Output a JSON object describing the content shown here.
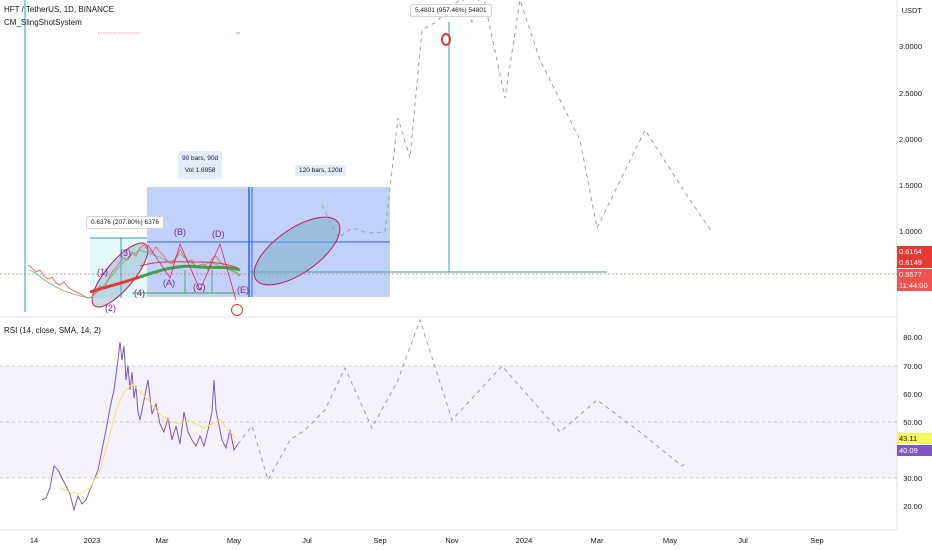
{
  "header": {
    "symbol_line": "HFT / TetherUS, 1D, BINANCE",
    "indicator_line": "CM_SlingShotSystem"
  },
  "price_axis": {
    "currency": "USDT",
    "labels": [
      "3.0000",
      "2.5000",
      "2.0000",
      "1.5000",
      "1.0000"
    ]
  },
  "price_tags": {
    "tag1": "0.6164",
    "tag2": "0.6149",
    "tag3": "0.5577",
    "countdown": "11:44:00",
    "colors": {
      "red": "#e53935",
      "dark_red": "#b71c1c"
    }
  },
  "annotations": {
    "top_measure": "5.4801 (957.46%) 54801",
    "left_measure": "0.6376 (207.80%) 6376",
    "range1_bars": "90 bars, 90d",
    "range1_vol": "Vol 1.6958",
    "range2_bars": "120 bars, 120d",
    "waves": [
      "(1)",
      "(2)",
      "(3)",
      "(4)",
      "(A)",
      "(B)",
      "(C)",
      "(D)",
      "(E)"
    ]
  },
  "rsi": {
    "title": "RSI (14, close, SMA, 14, 2)",
    "axis_labels": [
      "80.00",
      "70.00",
      "60.00",
      "50.00",
      "30.00",
      "20.00"
    ],
    "tag_sma": "43.11",
    "tag_rsi": "40.09",
    "colors": {
      "rsi_line": "#7e57c2",
      "sma_line": "#f7e45c",
      "band": "#ede7f6"
    }
  },
  "time_axis": {
    "labels": [
      "14",
      "2023",
      "Mar",
      "May",
      "Jul",
      "Sep",
      "Nov",
      "2024",
      "Mar",
      "May",
      "Jul",
      "Sep"
    ]
  },
  "colors": {
    "range_fill": "#4d7cf0",
    "ellipse": "#7fb0c8",
    "ellipse_border": "#c2185b",
    "teal_line": "#26a6b8",
    "wave_label": "#7b1fa2",
    "sling_red": "#e53935",
    "sling_green": "#43a047"
  }
}
